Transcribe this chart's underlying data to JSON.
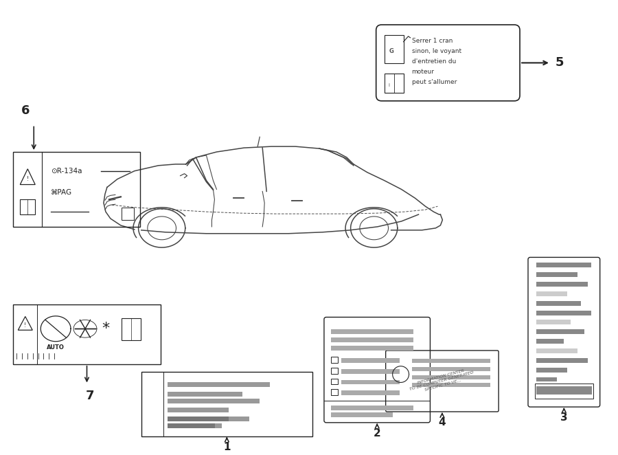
{
  "bg_color": "#ffffff",
  "label5_text": [
    "Serrer 1 cran",
    "sinon, le voyant",
    "d'entretien du",
    "moteur",
    "peut s'allumer"
  ],
  "label6_r134a": "R-134a",
  "label6_pag": "PAG",
  "numbers": [
    "1",
    "2",
    "3",
    "4",
    "5",
    "6",
    "7"
  ],
  "dark": "#222222",
  "med": "#888888",
  "light": "#cccccc",
  "car_color": "#444444"
}
